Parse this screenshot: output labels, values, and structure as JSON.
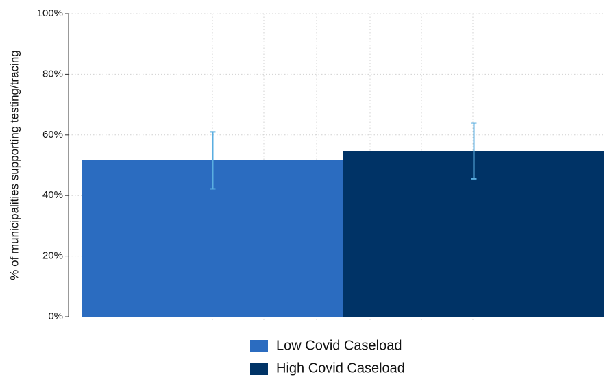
{
  "chart_data": {
    "type": "bar",
    "ylabel": "% of municipalities supporting testing/tracing",
    "series": [
      {
        "name": "Low Covid Caseload",
        "color": "#2b6cc0",
        "values": [
          51.6
        ],
        "errors": [
          9.4
        ]
      },
      {
        "name": "High Covid Caseload",
        "color": "#003366",
        "values": [
          54.7
        ],
        "errors": [
          9.2
        ]
      }
    ],
    "error_color": "#5aaee0",
    "ylim": [
      0,
      100
    ],
    "yticks": [
      {
        "value": 0,
        "label": "0%"
      },
      {
        "value": 20,
        "label": "20%"
      },
      {
        "value": 40,
        "label": "40%"
      },
      {
        "value": 60,
        "label": "60%"
      },
      {
        "value": 80,
        "label": "80%"
      },
      {
        "value": 100,
        "label": "100%"
      }
    ],
    "grid": true
  }
}
